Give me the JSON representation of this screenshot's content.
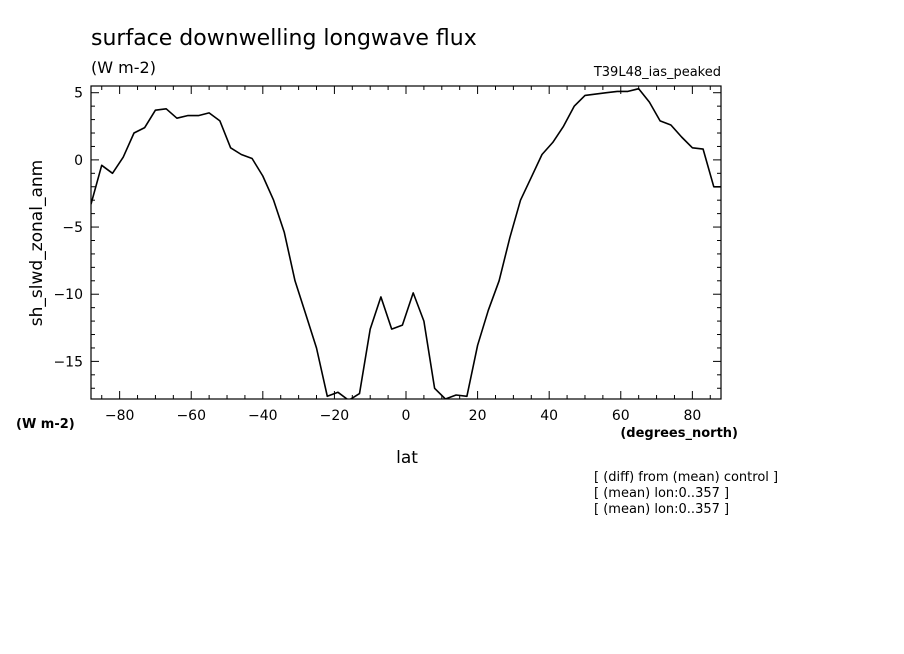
{
  "chart_data": {
    "type": "line",
    "title": "surface downwelling longwave flux",
    "subtitle": "(W m-2)",
    "run_label": "T39L48_ias_peaked",
    "xlabel": "lat",
    "x_units": "(degrees_north)",
    "ylabel": "sh_slwd_zonal_anm",
    "y_units": "(W m-2)",
    "xlim": [
      -88,
      88
    ],
    "ylim": [
      -17.8,
      5.5
    ],
    "xticks": [
      -80,
      -60,
      -40,
      -20,
      0,
      20,
      40,
      60,
      80
    ],
    "yticks": [
      5,
      0,
      -5,
      -10,
      -15
    ],
    "grid": false,
    "notes": [
      "[ (diff) from (mean) control ]",
      "[ (mean) lon:0..357 ]",
      "[ (mean) lon:0..357 ]"
    ],
    "series": [
      {
        "x": [
          -88,
          -85,
          -82,
          -79,
          -76,
          -73,
          -70,
          -67,
          -64,
          -61,
          -58,
          -55,
          -52,
          -49,
          -46,
          -43,
          -40,
          -37,
          -34,
          -31,
          -28,
          -25,
          -22,
          -19,
          -16,
          -13,
          -10,
          -7,
          -4,
          -1,
          2,
          5,
          8,
          11,
          14,
          17,
          20,
          23,
          26,
          29,
          32,
          35,
          38,
          41,
          44,
          47,
          50,
          53,
          56,
          59,
          62,
          65,
          68,
          71,
          74,
          77,
          80,
          83,
          86,
          88
        ],
        "y": [
          -3.3,
          -0.4,
          -1.0,
          0.2,
          2.0,
          2.4,
          3.7,
          3.8,
          3.1,
          3.3,
          3.3,
          3.5,
          2.9,
          0.9,
          0.4,
          0.1,
          -1.2,
          -3.0,
          -5.4,
          -9.0,
          -11.5,
          -14.0,
          -17.6,
          -17.3,
          -17.9,
          -17.4,
          -12.6,
          -10.2,
          -12.6,
          -12.3,
          -9.9,
          -12.0,
          -17.0,
          -17.8,
          -17.5,
          -17.6,
          -13.8,
          -11.2,
          -9.0,
          -5.8,
          -3.0,
          -1.3,
          0.4,
          1.3,
          2.5,
          4.0,
          4.8,
          4.9,
          5.0,
          5.1,
          5.1,
          5.3,
          4.3,
          2.9,
          2.6,
          1.7,
          0.9,
          0.8,
          -2.0,
          -2.0
        ]
      }
    ]
  }
}
